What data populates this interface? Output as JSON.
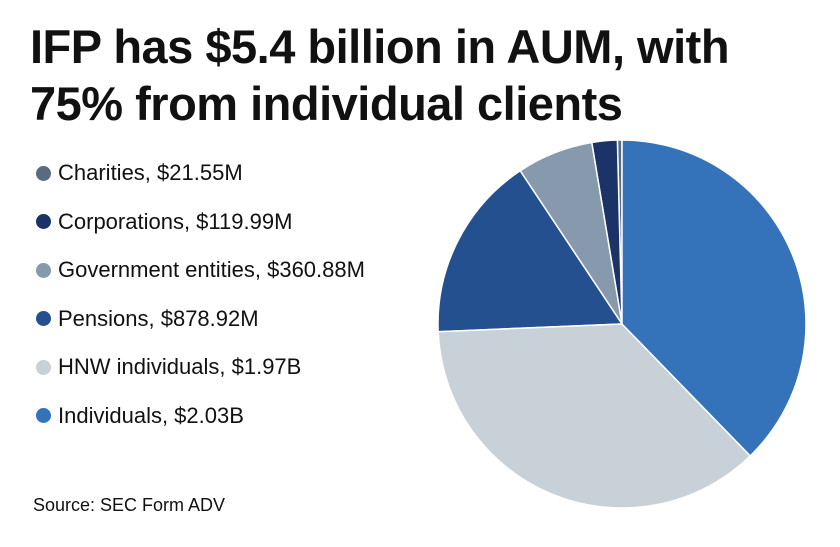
{
  "chart_data": {
    "type": "pie",
    "title": "IFP has $5.4 billion in AUM, with 75% from individual clients",
    "slices": [
      {
        "name": "Charities",
        "label": "Charities, $21.55M",
        "value": 21.55,
        "color": "#5b6b7e"
      },
      {
        "name": "Corporations",
        "label": "Corporations, $119.99M",
        "value": 119.99,
        "color": "#1b3366"
      },
      {
        "name": "Government entities",
        "label": "Government entities, $360.88M",
        "value": 360.88,
        "color": "#8799ad"
      },
      {
        "name": "Pensions",
        "label": "Pensions, $878.92M",
        "value": 878.92,
        "color": "#25508f"
      },
      {
        "name": "HNW individuals",
        "label": "HNW individuals, $1.97B",
        "value": 1970,
        "color": "#c8d0d8"
      },
      {
        "name": "Individuals",
        "label": "Individuals, $2.03B",
        "value": 2030,
        "color": "#3472ba"
      }
    ],
    "unit": "$M",
    "legend_position": "left",
    "source": "Source: SEC Form ADV"
  }
}
